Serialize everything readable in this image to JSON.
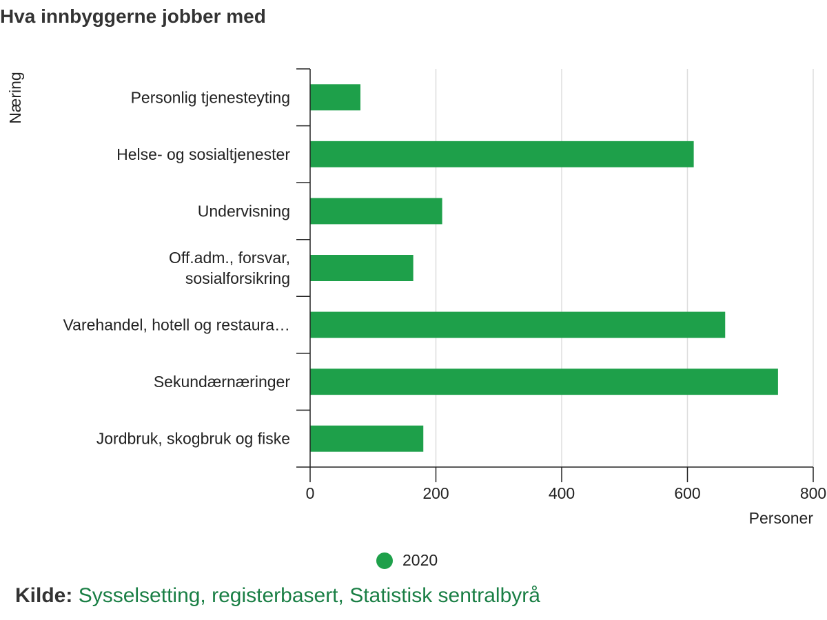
{
  "colors": {
    "bar": "#1ea04a",
    "grid": "#dddddd",
    "axis": "#222222",
    "link": "#1a7f45"
  },
  "chart_data": {
    "type": "bar",
    "orientation": "horizontal",
    "title": "Hva innbyggerne jobber med",
    "xlabel": "Personer",
    "ylabel": "Næring",
    "xlim": [
      0,
      800
    ],
    "xticks": [
      0,
      200,
      400,
      600,
      800
    ],
    "grid": true,
    "legend_position": "bottom",
    "categories": [
      [
        "Personlig tjenesteyting"
      ],
      [
        "Helse- og sosialtjenester"
      ],
      [
        "Undervisning"
      ],
      [
        "Off.adm., forsvar,",
        "sosialforsikring"
      ],
      [
        "Varehandel, hotell og restaura…"
      ],
      [
        "Sekundærnæringer"
      ],
      [
        "Jordbruk, skogbruk og fiske"
      ]
    ],
    "series": [
      {
        "name": "2020",
        "values": [
          80,
          610,
          210,
          164,
          660,
          744,
          180
        ]
      }
    ]
  },
  "source": {
    "label": "Kilde:",
    "text": "Sysselsetting, registerbasert, Statistisk sentralbyrå"
  }
}
